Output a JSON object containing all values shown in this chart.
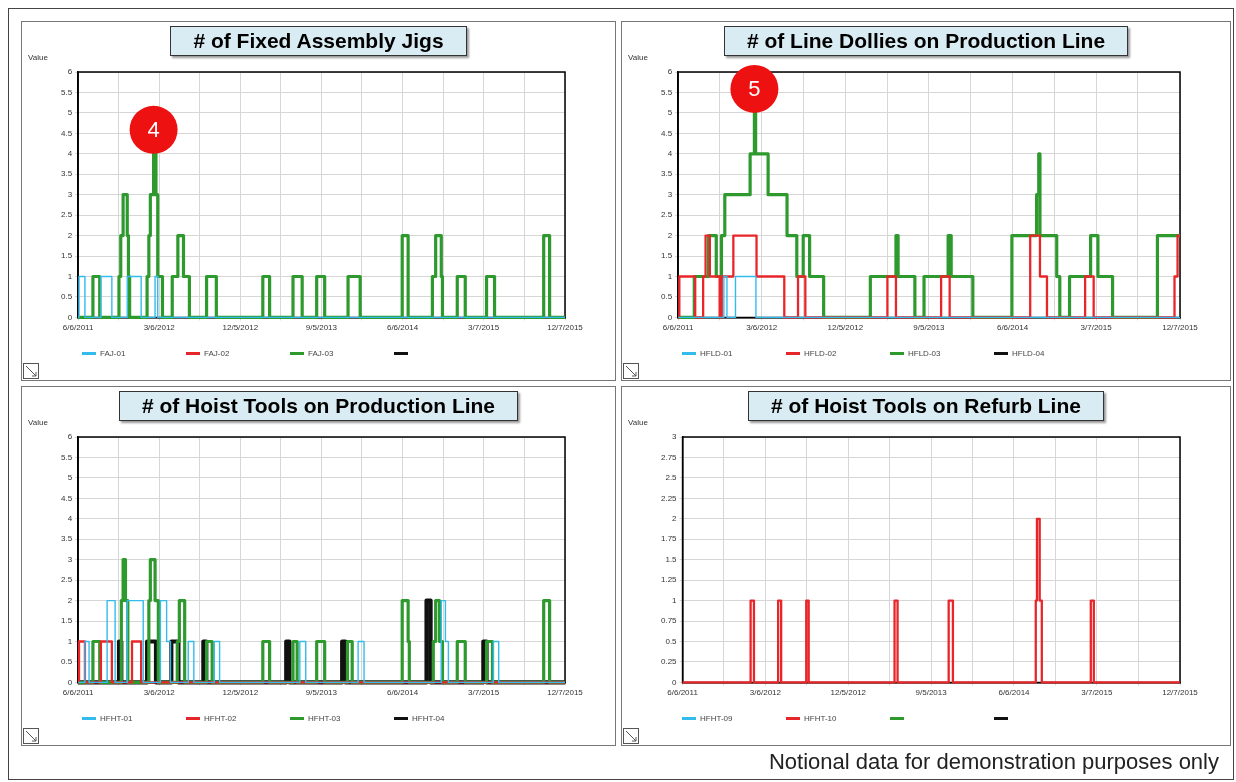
{
  "chart_data": [
    {
      "type": "step",
      "title": "# of Fixed Assembly Jigs",
      "ylabel": "Value",
      "legend": "bottom left",
      "grid": true,
      "xlim": [
        "2011-06-06",
        "2015-12-07"
      ],
      "xticks": [
        {
          "value": "2011-06-06",
          "label": "6/6/2011"
        },
        {
          "value": "2011-10-21",
          "label": null
        },
        {
          "value": "2012-03-06",
          "label": "3/6/2012"
        },
        {
          "value": "2012-07-21",
          "label": null
        },
        {
          "value": "2012-12-05",
          "label": "12/5/2012"
        },
        {
          "value": "2013-04-21",
          "label": null
        },
        {
          "value": "2013-09-05",
          "label": "9/5/2013"
        },
        {
          "value": "2014-01-20",
          "label": null
        },
        {
          "value": "2014-06-06",
          "label": "6/6/2014"
        },
        {
          "value": "2014-10-21",
          "label": null
        },
        {
          "value": "2015-03-07",
          "label": "3/7/2015"
        },
        {
          "value": "2015-07-22",
          "label": null
        },
        {
          "value": "2015-12-07",
          "label": "12/7/2015"
        }
      ],
      "ylim": [
        0,
        6
      ],
      "yticks": [
        0,
        0.5,
        1,
        1.5,
        2,
        2.5,
        3,
        3.5,
        4,
        4.5,
        5,
        5.5,
        6
      ],
      "annotations": [
        {
          "text": "4",
          "x": "2012-02-16",
          "y": 4
        }
      ],
      "series": [
        {
          "name": "FAJ-01",
          "color": "#33bbee",
          "x": [
            "2011-06-06",
            "2011-06-09",
            "2011-06-29",
            "2011-08-22",
            "2011-09-28",
            "2011-11-19",
            "2012-01-05",
            "2012-02-21",
            "2012-03-01",
            "2015-12-07"
          ],
          "values": [
            0,
            1,
            0,
            1,
            0,
            1,
            0,
            1,
            0,
            0
          ]
        },
        {
          "name": "FAJ-02",
          "color": "#e8262a"
        },
        {
          "name": "FAJ-03",
          "color": "#2e9a2e",
          "x": [
            "2011-06-06",
            "2011-07-26",
            "2011-08-18",
            "2011-10-22",
            "2011-10-28",
            "2011-11-05",
            "2011-11-19",
            "2011-11-23",
            "2011-11-27",
            "2012-01-25",
            "2012-01-31",
            "2012-02-05",
            "2012-02-16",
            "2012-02-24",
            "2012-03-01",
            "2012-03-17",
            "2012-04-19",
            "2012-05-08",
            "2012-05-27",
            "2012-06-16",
            "2012-08-13",
            "2012-09-15",
            "2013-02-19",
            "2013-03-14",
            "2013-06-01",
            "2013-07-02",
            "2013-08-20",
            "2013-09-16",
            "2013-12-04",
            "2014-01-14",
            "2014-06-05",
            "2014-06-25",
            "2014-09-15",
            "2014-09-26",
            "2014-10-15",
            "2014-10-19",
            "2014-12-08",
            "2015-01-04",
            "2015-03-17",
            "2015-04-13",
            "2015-09-26",
            "2015-10-16",
            "2015-12-07"
          ],
          "values": [
            0,
            1,
            0,
            1,
            2,
            3,
            2,
            1,
            0,
            1,
            2,
            3,
            4,
            3,
            1,
            0,
            1,
            2,
            1,
            0,
            1,
            0,
            1,
            0,
            1,
            0,
            1,
            0,
            1,
            0,
            2,
            0,
            1,
            2,
            1,
            0,
            1,
            0,
            1,
            0,
            2,
            0,
            0
          ]
        },
        {
          "color": "#111111"
        }
      ]
    },
    {
      "type": "step",
      "title": "# of Line Dollies on Production Line",
      "ylabel": "Value",
      "legend": "bottom left",
      "grid": true,
      "xlim": [
        "2011-06-06",
        "2015-12-07"
      ],
      "xticks": [
        {
          "value": "2011-06-06",
          "label": "6/6/2011"
        },
        {
          "value": "2011-10-21",
          "label": null
        },
        {
          "value": "2012-03-06",
          "label": "3/6/2012"
        },
        {
          "value": "2012-07-21",
          "label": null
        },
        {
          "value": "2012-12-05",
          "label": "12/5/2012"
        },
        {
          "value": "2013-04-21",
          "label": null
        },
        {
          "value": "2013-09-05",
          "label": "9/5/2013"
        },
        {
          "value": "2014-01-20",
          "label": null
        },
        {
          "value": "2014-06-06",
          "label": "6/6/2014"
        },
        {
          "value": "2014-10-21",
          "label": null
        },
        {
          "value": "2015-03-07",
          "label": "3/7/2015"
        },
        {
          "value": "2015-07-22",
          "label": null
        },
        {
          "value": "2015-12-07",
          "label": "12/7/2015"
        }
      ],
      "ylim": [
        0,
        6
      ],
      "yticks": [
        0,
        0.5,
        1,
        1.5,
        2,
        2.5,
        3,
        3.5,
        4,
        4.5,
        5,
        5.5,
        6
      ],
      "annotations": [
        {
          "text": "5",
          "x": "2012-02-11",
          "y": 5
        }
      ],
      "series": [
        {
          "name": "HFLD-01",
          "color": "#33bbee",
          "x": [
            "2011-06-06",
            "2011-11-03",
            "2011-11-13",
            "2011-12-11",
            "2012-02-16",
            "2015-12-07"
          ],
          "values": [
            0,
            1,
            0,
            1,
            0,
            0
          ]
        },
        {
          "name": "HFLD-02",
          "color": "#e8262a",
          "x": [
            "2011-06-06",
            "2011-06-10",
            "2011-08-01",
            "2011-08-27",
            "2011-09-04",
            "2011-09-18",
            "2011-10-20",
            "2011-10-27",
            "2011-12-04",
            "2012-02-18",
            "2012-05-19",
            "2012-07-03",
            "2012-07-27",
            "2013-04-22",
            "2013-05-20",
            "2013-10-15",
            "2013-11-12",
            "2014-08-03",
            "2014-09-04",
            "2014-09-27",
            "2015-01-30",
            "2015-02-27",
            "2015-11-19",
            "2015-11-29",
            "2015-12-07"
          ],
          "values": [
            0,
            1,
            0,
            1,
            2,
            1,
            0,
            1,
            2,
            1,
            0,
            1,
            0,
            1,
            0,
            1,
            0,
            2,
            1,
            0,
            1,
            0,
            1,
            2,
            2
          ]
        },
        {
          "name": "HFLD-03",
          "color": "#2e9a2e",
          "x": [
            "2011-06-06",
            "2011-07-29",
            "2011-09-14",
            "2011-10-09",
            "2011-10-26",
            "2011-11-06",
            "2012-01-28",
            "2012-02-11",
            "2012-02-15",
            "2012-03-27",
            "2012-05-28",
            "2012-06-29",
            "2012-07-20",
            "2012-08-10",
            "2012-09-25",
            "2013-02-25",
            "2013-05-20",
            "2013-05-27",
            "2013-07-21",
            "2013-08-20",
            "2013-11-07",
            "2013-11-17",
            "2014-01-27",
            "2014-06-04",
            "2014-08-24",
            "2014-08-31",
            "2014-09-04",
            "2014-10-29",
            "2014-11-08",
            "2014-12-10",
            "2015-02-17",
            "2015-03-13",
            "2015-04-30",
            "2015-09-24",
            "2015-12-07"
          ],
          "values": [
            0,
            1,
            2,
            1,
            2,
            3,
            4,
            5,
            4,
            3,
            2,
            1,
            2,
            1,
            0,
            1,
            2,
            1,
            0,
            1,
            2,
            1,
            0,
            2,
            3,
            4,
            2,
            1,
            0,
            1,
            2,
            1,
            0,
            2,
            2
          ]
        },
        {
          "name": "HFLD-04",
          "color": "#111111"
        }
      ]
    },
    {
      "type": "step",
      "title": "# of Hoist Tools on Production Line",
      "ylabel": "Value",
      "legend": "bottom left",
      "grid": true,
      "xlim": [
        "2011-06-06",
        "2015-12-07"
      ],
      "xticks": [
        {
          "value": "2011-06-06",
          "label": "6/6/2011"
        },
        {
          "value": "2011-10-21",
          "label": null
        },
        {
          "value": "2012-03-06",
          "label": "3/6/2012"
        },
        {
          "value": "2012-07-21",
          "label": null
        },
        {
          "value": "2012-12-05",
          "label": "12/5/2012"
        },
        {
          "value": "2013-04-21",
          "label": null
        },
        {
          "value": "2013-09-05",
          "label": "9/5/2013"
        },
        {
          "value": "2014-01-20",
          "label": null
        },
        {
          "value": "2014-06-06",
          "label": "6/6/2014"
        },
        {
          "value": "2014-10-21",
          "label": null
        },
        {
          "value": "2015-03-07",
          "label": "3/7/2015"
        },
        {
          "value": "2015-07-22",
          "label": null
        },
        {
          "value": "2015-12-07",
          "label": "12/7/2015"
        }
      ],
      "ylim": [
        0,
        6
      ],
      "yticks": [
        0,
        0.5,
        1,
        1.5,
        2,
        2.5,
        3,
        3.5,
        4,
        4.5,
        5,
        5.5,
        6
      ],
      "series": [
        {
          "name": "HFHT-01",
          "color": "#33bbee",
          "x": [
            "2011-06-06",
            "2011-06-29",
            "2011-07-13",
            "2011-09-12",
            "2011-10-09",
            "2011-11-19",
            "2012-01-12",
            "2012-03-10",
            "2012-03-31",
            "2012-04-13",
            "2012-06-12",
            "2012-07-01",
            "2012-09-08",
            "2012-09-26",
            "2013-06-24",
            "2013-07-14",
            "2014-01-07",
            "2014-01-27",
            "2014-10-15",
            "2014-10-29",
            "2014-11-08",
            "2015-04-09",
            "2015-04-27",
            "2015-12-07"
          ],
          "values": [
            0,
            1,
            0,
            2,
            0,
            2,
            0,
            2,
            1,
            0,
            1,
            0,
            1,
            0,
            1,
            0,
            1,
            0,
            2,
            1,
            0,
            1,
            0,
            0
          ]
        },
        {
          "name": "HFHT-02",
          "color": "#e8262a",
          "x": [
            "2011-06-06",
            "2011-06-09",
            "2011-06-29",
            "2011-08-22",
            "2011-09-28",
            "2011-12-05",
            "2012-01-05",
            "2015-12-07"
          ],
          "values": [
            0,
            1,
            0,
            1,
            0,
            1,
            0,
            0
          ]
        },
        {
          "name": "HFHT-03",
          "color": "#2e9a2e",
          "x": [
            "2011-06-06",
            "2011-07-26",
            "2011-08-18",
            "2011-10-30",
            "2011-11-05",
            "2011-11-13",
            "2011-11-21",
            "2012-01-31",
            "2012-02-05",
            "2012-02-21",
            "2012-03-03",
            "2012-05-06",
            "2012-05-13",
            "2012-05-31",
            "2012-08-13",
            "2012-09-01",
            "2013-02-19",
            "2013-03-14",
            "2013-06-01",
            "2013-06-15",
            "2013-08-20",
            "2013-09-16",
            "2013-12-02",
            "2013-12-18",
            "2014-06-05",
            "2014-06-25",
            "2014-06-29",
            "2014-09-18",
            "2014-09-26",
            "2014-10-09",
            "2014-10-19",
            "2014-12-08",
            "2015-01-04",
            "2015-03-17",
            "2015-04-06",
            "2015-09-26",
            "2015-10-16",
            "2015-12-07"
          ],
          "values": [
            0,
            1,
            0,
            2,
            3,
            2,
            0,
            2,
            3,
            2,
            0,
            1,
            2,
            0,
            1,
            0,
            1,
            0,
            1,
            0,
            1,
            0,
            1,
            0,
            2,
            1,
            0,
            1,
            2,
            1,
            0,
            1,
            0,
            1,
            0,
            2,
            0,
            0
          ]
        },
        {
          "name": "HFHT-04",
          "color": "#111111",
          "x": [
            "2011-06-06",
            "2011-10-22",
            "2011-10-30",
            "2012-01-25",
            "2012-02-24",
            "2012-04-16",
            "2012-05-10",
            "2012-08-02",
            "2012-08-12",
            "2013-05-09",
            "2013-05-20",
            "2013-11-14",
            "2013-11-25",
            "2014-08-26",
            "2014-09-09",
            "2015-03-06",
            "2015-03-17",
            "2015-12-07"
          ],
          "values": [
            0,
            1,
            0,
            1,
            0,
            1,
            0,
            1,
            0,
            1,
            0,
            1,
            0,
            2,
            0,
            1,
            0,
            0
          ]
        }
      ]
    },
    {
      "type": "step",
      "title": "# of Hoist Tools on Refurb Line",
      "ylabel": "Value",
      "legend": "bottom left",
      "grid": true,
      "xlim": [
        "2011-06-06",
        "2015-12-07"
      ],
      "xticks": [
        {
          "value": "2011-06-06",
          "label": "6/6/2011"
        },
        {
          "value": "2011-10-21",
          "label": null
        },
        {
          "value": "2012-03-06",
          "label": "3/6/2012"
        },
        {
          "value": "2012-07-21",
          "label": null
        },
        {
          "value": "2012-12-05",
          "label": "12/5/2012"
        },
        {
          "value": "2013-04-21",
          "label": null
        },
        {
          "value": "2013-09-05",
          "label": "9/5/2013"
        },
        {
          "value": "2014-01-20",
          "label": null
        },
        {
          "value": "2014-06-06",
          "label": "6/6/2014"
        },
        {
          "value": "2014-10-21",
          "label": null
        },
        {
          "value": "2015-03-07",
          "label": "3/7/2015"
        },
        {
          "value": "2015-07-22",
          "label": null
        },
        {
          "value": "2015-12-07",
          "label": "12/7/2015"
        }
      ],
      "ylim": [
        0,
        3
      ],
      "yticks": [
        0,
        0.25,
        0.5,
        0.75,
        1,
        1.25,
        1.5,
        1.75,
        2,
        2.25,
        2.5,
        2.75,
        3
      ],
      "annotations": [
        "Notional data for demonstration purposes only"
      ],
      "series": [
        {
          "name": "HFHT-09",
          "color": "#33bbee"
        },
        {
          "name": "HFHT-10",
          "color": "#e8262a",
          "x": [
            "2011-06-06",
            "2012-01-17",
            "2012-01-28",
            "2012-04-17",
            "2012-04-27",
            "2012-07-19",
            "2012-07-27",
            "2013-05-07",
            "2013-05-17",
            "2013-11-02",
            "2013-11-16",
            "2014-08-17",
            "2014-08-21",
            "2014-08-30",
            "2014-09-06",
            "2015-02-15",
            "2015-02-25",
            "2015-12-07"
          ],
          "values": [
            0,
            1,
            0,
            1,
            0,
            1,
            0,
            1,
            0,
            1,
            0,
            1,
            2,
            1,
            0,
            1,
            0,
            0
          ]
        },
        {
          "color": "#2e9a2e"
        },
        {
          "color": "#111111"
        }
      ]
    }
  ]
}
